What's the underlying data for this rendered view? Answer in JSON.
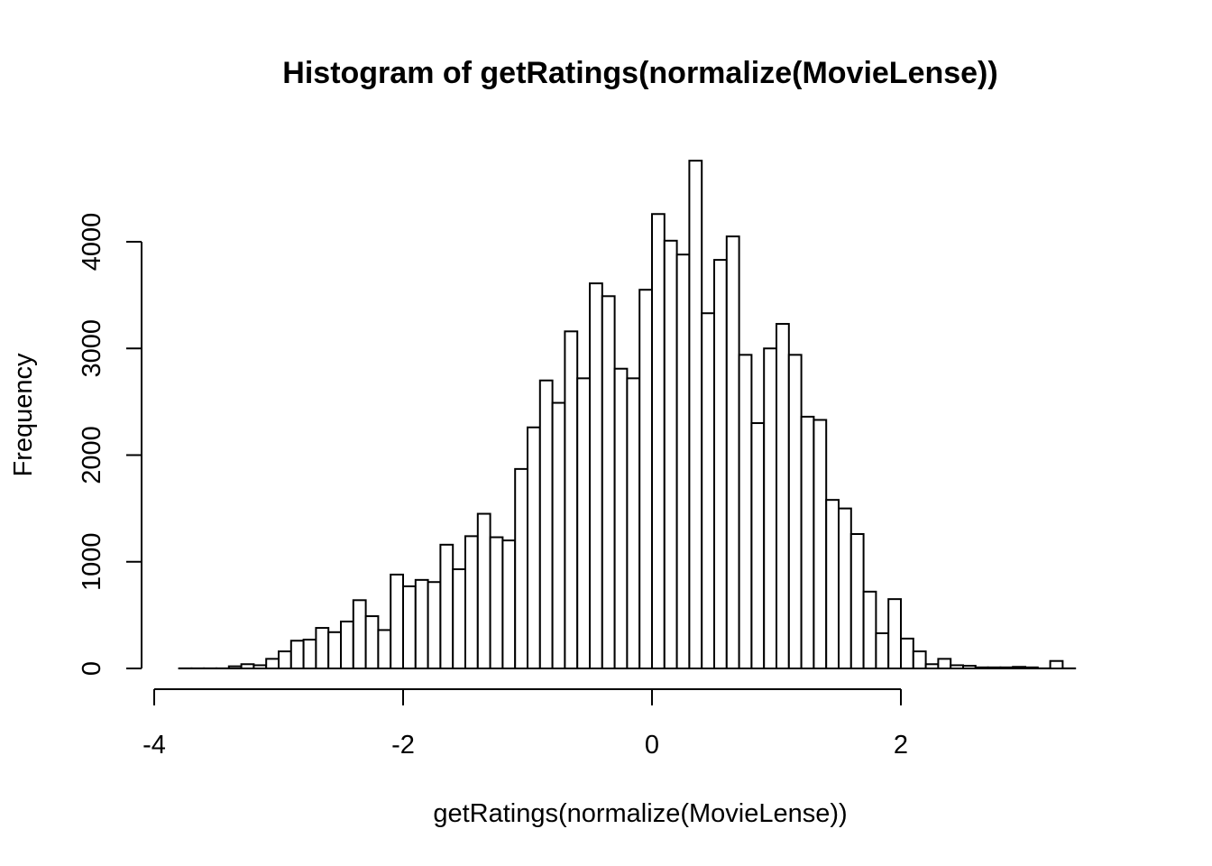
{
  "chart_data": {
    "type": "bar",
    "title": "Histogram of getRatings(normalize(MovieLense))",
    "xlabel": "getRatings(normalize(MovieLense))",
    "ylabel": "Frequency",
    "bin_width": 0.1,
    "bins_start": -3.8,
    "xlim": [
      -4,
      3.7
    ],
    "ylim": [
      0,
      4800
    ],
    "x_ticks": [
      -4,
      -2,
      0,
      2
    ],
    "y_ticks": [
      0,
      1000,
      2000,
      3000,
      4000
    ],
    "grid": false,
    "values": [
      1,
      1,
      1,
      1,
      20,
      40,
      30,
      90,
      160,
      260,
      270,
      380,
      340,
      440,
      640,
      490,
      360,
      880,
      770,
      830,
      810,
      1160,
      930,
      1240,
      1450,
      1230,
      1200,
      1870,
      2260,
      2700,
      2490,
      3160,
      2720,
      3610,
      3490,
      2810,
      2720,
      3550,
      4260,
      4010,
      3880,
      4760,
      3330,
      3830,
      4050,
      2940,
      2300,
      3000,
      3230,
      2940,
      2360,
      2330,
      1580,
      1500,
      1260,
      720,
      330,
      650,
      280,
      160,
      40,
      90,
      30,
      25,
      10,
      10,
      10,
      15,
      10,
      1,
      70,
      1
    ]
  }
}
